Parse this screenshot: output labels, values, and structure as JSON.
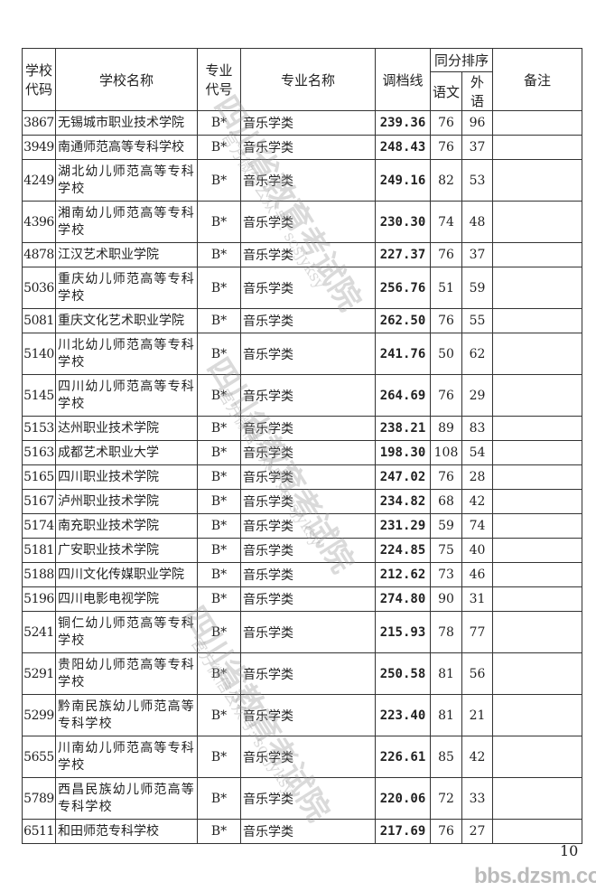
{
  "header": {
    "school_code": "学校代码",
    "school_name": "学校名称",
    "major_code": "专业代号",
    "major_name": "专业名称",
    "cutoff": "调档线",
    "tie_rank": "同分排序",
    "chinese": "语文",
    "foreign": "外语",
    "remarks": "备注"
  },
  "rows": [
    {
      "code": "3867",
      "name": "无锡城市职业技术学院",
      "mcode": "B*",
      "major": "音乐学类",
      "score": "239.36",
      "cn": "76",
      "fl": "96",
      "note": ""
    },
    {
      "code": "3949",
      "name": "南通师范高等专科学校",
      "mcode": "B*",
      "major": "音乐学类",
      "score": "248.43",
      "cn": "76",
      "fl": "37",
      "note": ""
    },
    {
      "code": "4249",
      "name": "湖北幼儿师范高等专科学校",
      "mcode": "B*",
      "major": "音乐学类",
      "score": "249.16",
      "cn": "82",
      "fl": "53",
      "note": ""
    },
    {
      "code": "4396",
      "name": "湘南幼儿师范高等专科学校",
      "mcode": "B*",
      "major": "音乐学类",
      "score": "230.30",
      "cn": "74",
      "fl": "48",
      "note": ""
    },
    {
      "code": "4878",
      "name": "江汉艺术职业学院",
      "mcode": "B*",
      "major": "音乐学类",
      "score": "227.37",
      "cn": "76",
      "fl": "37",
      "note": ""
    },
    {
      "code": "5036",
      "name": "重庆幼儿师范高等专科学校",
      "mcode": "B*",
      "major": "音乐学类",
      "score": "256.76",
      "cn": "51",
      "fl": "59",
      "note": ""
    },
    {
      "code": "5081",
      "name": "重庆文化艺术职业学院",
      "mcode": "B*",
      "major": "音乐学类",
      "score": "262.50",
      "cn": "76",
      "fl": "55",
      "note": ""
    },
    {
      "code": "5140",
      "name": "川北幼儿师范高等专科学校",
      "mcode": "B*",
      "major": "音乐学类",
      "score": "241.76",
      "cn": "50",
      "fl": "62",
      "note": ""
    },
    {
      "code": "5145",
      "name": "四川幼儿师范高等专科学校",
      "mcode": "B*",
      "major": "音乐学类",
      "score": "264.69",
      "cn": "76",
      "fl": "29",
      "note": ""
    },
    {
      "code": "5153",
      "name": "达州职业技术学院",
      "mcode": "B*",
      "major": "音乐学类",
      "score": "238.21",
      "cn": "89",
      "fl": "83",
      "note": ""
    },
    {
      "code": "5163",
      "name": "成都艺术职业大学",
      "mcode": "B*",
      "major": "音乐学类",
      "score": "198.30",
      "cn": "108",
      "fl": "54",
      "note": ""
    },
    {
      "code": "5165",
      "name": "四川职业技术学院",
      "mcode": "B*",
      "major": "音乐学类",
      "score": "247.02",
      "cn": "76",
      "fl": "28",
      "note": ""
    },
    {
      "code": "5167",
      "name": "泸州职业技术学院",
      "mcode": "B*",
      "major": "音乐学类",
      "score": "234.82",
      "cn": "68",
      "fl": "42",
      "note": ""
    },
    {
      "code": "5174",
      "name": "南充职业技术学院",
      "mcode": "B*",
      "major": "音乐学类",
      "score": "231.29",
      "cn": "59",
      "fl": "74",
      "note": ""
    },
    {
      "code": "5181",
      "name": "广安职业技术学院",
      "mcode": "B*",
      "major": "音乐学类",
      "score": "224.85",
      "cn": "75",
      "fl": "40",
      "note": ""
    },
    {
      "code": "5188",
      "name": "四川文化传媒职业学院",
      "mcode": "B*",
      "major": "音乐学类",
      "score": "212.62",
      "cn": "73",
      "fl": "46",
      "note": ""
    },
    {
      "code": "5196",
      "name": "四川电影电视学院",
      "mcode": "B*",
      "major": "音乐学类",
      "score": "274.80",
      "cn": "90",
      "fl": "31",
      "note": ""
    },
    {
      "code": "5241",
      "name": "铜仁幼儿师范高等专科学校",
      "mcode": "B*",
      "major": "音乐学类",
      "score": "215.93",
      "cn": "78",
      "fl": "77",
      "note": ""
    },
    {
      "code": "5291",
      "name": "贵阳幼儿师范高等专科学校",
      "mcode": "B*",
      "major": "音乐学类",
      "score": "250.58",
      "cn": "81",
      "fl": "56",
      "note": ""
    },
    {
      "code": "5299",
      "name": "黔南民族幼儿师范高等专科学校",
      "mcode": "B*",
      "major": "音乐学类",
      "score": "223.40",
      "cn": "81",
      "fl": "21",
      "note": ""
    },
    {
      "code": "5655",
      "name": "川南幼儿师范高等专科学校",
      "mcode": "B*",
      "major": "音乐学类",
      "score": "226.61",
      "cn": "85",
      "fl": "42",
      "note": ""
    },
    {
      "code": "5789",
      "name": "西昌民族幼儿师范高等专科学校",
      "mcode": "B*",
      "major": "音乐学类",
      "score": "220.06",
      "cn": "72",
      "fl": "33",
      "note": ""
    },
    {
      "code": "6511",
      "name": "和田师范专科学校",
      "mcode": "B*",
      "major": "音乐学类",
      "score": "217.69",
      "cn": "76",
      "fl": "27",
      "note": ""
    }
  ],
  "page_number": "10",
  "watermarks": {
    "org": "四川省教育考试院",
    "wechat": "官方微信公众号: scsjyksy",
    "site": "bbs.dzsm.com"
  }
}
